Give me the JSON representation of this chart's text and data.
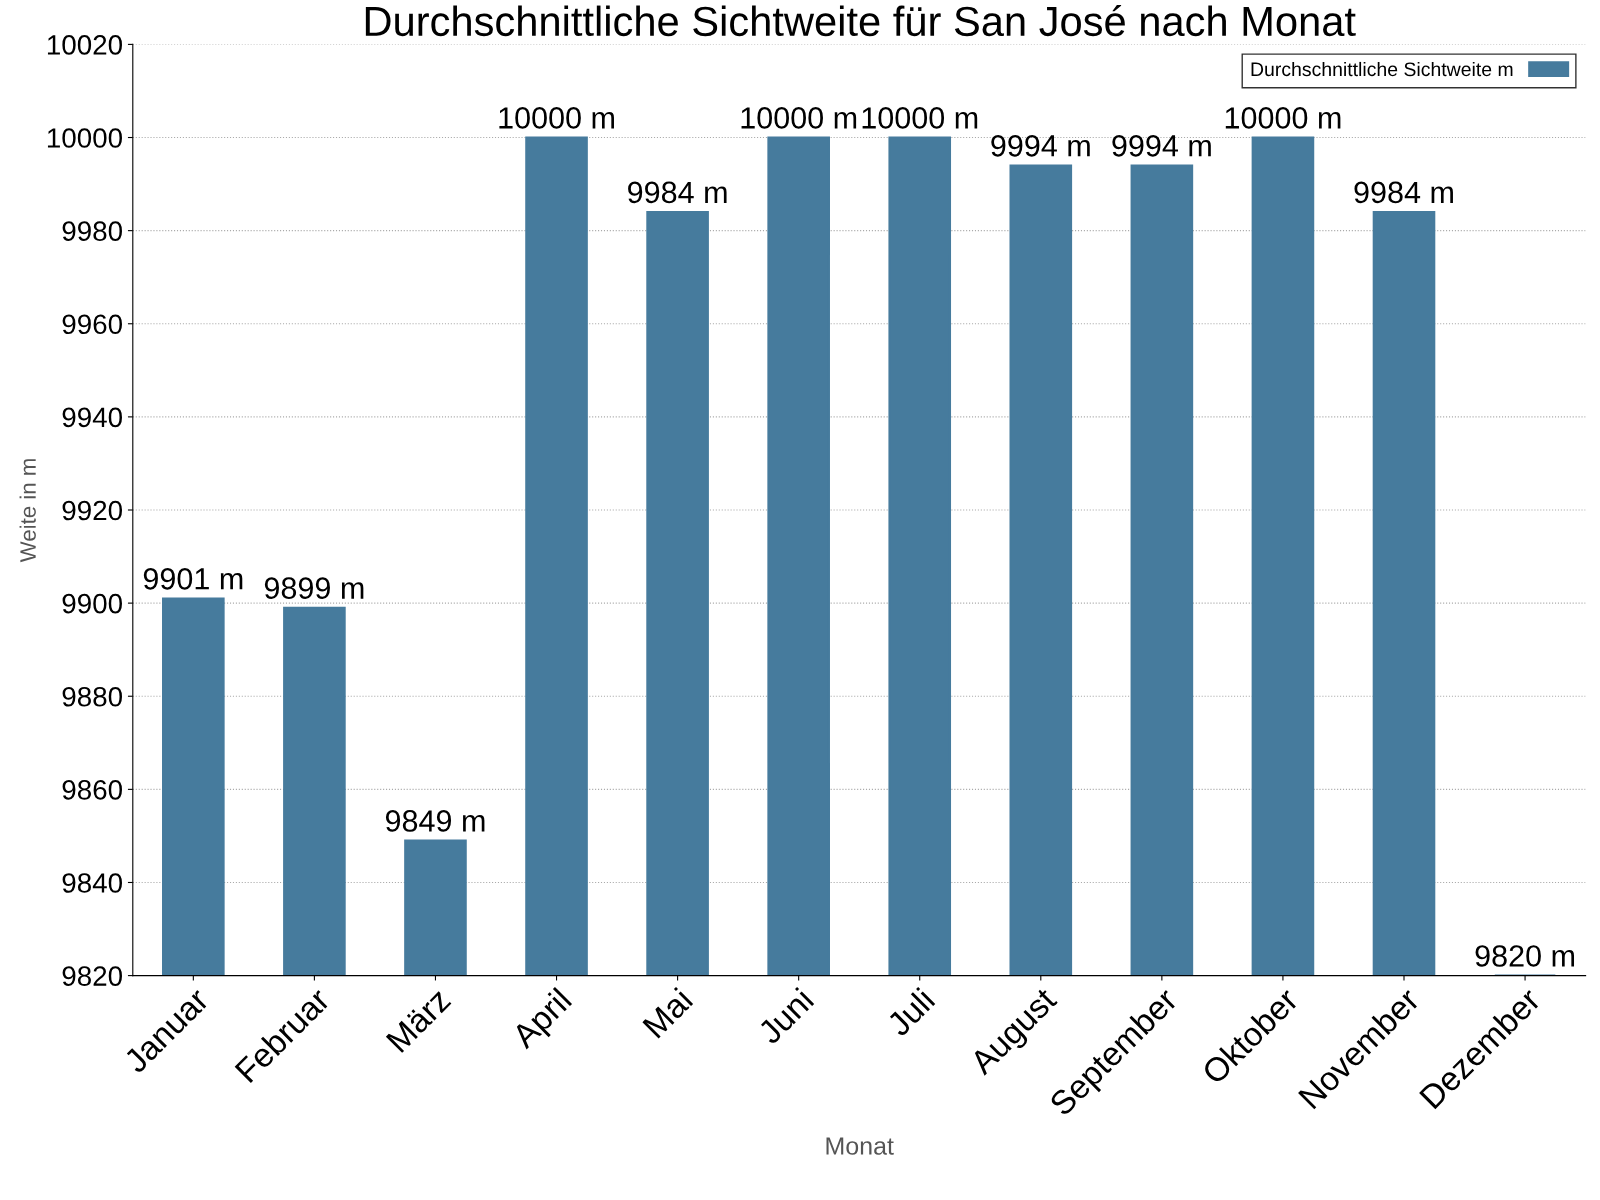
{
  "chart_data": {
    "type": "bar",
    "title": "Durchschnittliche Sichtweite für San José nach Monat",
    "xlabel": "Monat",
    "ylabel": "Weite in m",
    "categories": [
      "Januar",
      "Februar",
      "März",
      "April",
      "Mai",
      "Juni",
      "Juli",
      "August",
      "September",
      "Oktober",
      "November",
      "Dezember"
    ],
    "series": [
      {
        "name": "Durchschnittliche Sichtweite m",
        "color": "#467b9d",
        "values": [
          9901,
          9899,
          9849,
          10000,
          9984,
          10000,
          10000,
          9994,
          9994,
          10000,
          9984,
          9820
        ],
        "value_labels": [
          "9901 m",
          "9899 m",
          "9849 m",
          "10000 m",
          "9984 m",
          "10000 m",
          "10000 m",
          "9994 m",
          "9994 m",
          "10000 m",
          "9984 m",
          "9820 m"
        ]
      }
    ],
    "ylim": [
      9820,
      10020
    ],
    "yticks": [
      9820,
      9840,
      9860,
      9880,
      9900,
      9920,
      9940,
      9960,
      9980,
      10000,
      10020
    ],
    "grid": "y",
    "legend": "top right"
  }
}
